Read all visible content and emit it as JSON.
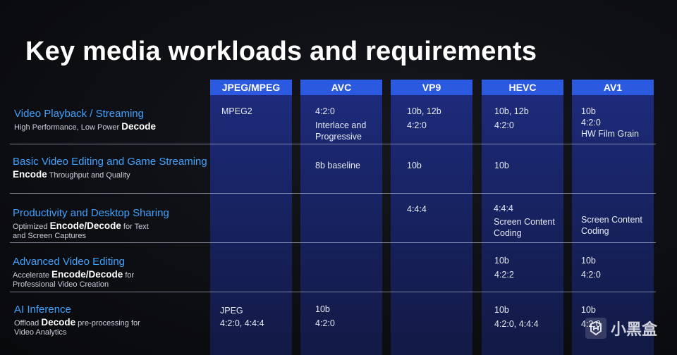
{
  "title": "Key media workloads and requirements",
  "columns": [
    "JPEG/MPEG",
    "AVC",
    "VP9",
    "HEVC",
    "AV1"
  ],
  "rows": [
    {
      "title": "Video Playback / Streaming",
      "desc_pre": "High Performance, Low Power ",
      "desc_bold": "Decode",
      "desc_post": "",
      "cells": [
        [
          "MPEG2"
        ],
        [
          "4:2:0",
          "Interlace and",
          "Progressive"
        ],
        [
          "10b, 12b",
          "4:2:0"
        ],
        [
          "10b, 12b",
          "4:2:0"
        ],
        [
          "10b",
          "4:2:0",
          "HW Film Grain"
        ]
      ]
    },
    {
      "title": "Basic Video Editing and Game Streaming",
      "desc_pre": "",
      "desc_bold": "Encode",
      "desc_post": " Throughput and Quality",
      "cells": [
        [],
        [
          "8b baseline"
        ],
        [
          "10b"
        ],
        [
          "10b"
        ],
        []
      ]
    },
    {
      "title": "Productivity and Desktop Sharing",
      "desc_pre": "Optimized ",
      "desc_bold": "Encode/Decode",
      "desc_post": " for Text and Screen Captures",
      "cells": [
        [],
        [],
        [
          "4:4:4"
        ],
        [
          "4:4:4",
          "Screen Content",
          "Coding"
        ],
        [
          "Screen Content",
          "Coding"
        ]
      ]
    },
    {
      "title": "Advanced Video Editing",
      "desc_pre": "Accelerate ",
      "desc_bold": "Encode/Decode",
      "desc_post": " for Professional Video Creation",
      "cells": [
        [],
        [],
        [],
        [
          "10b",
          "4:2:2"
        ],
        [
          "10b",
          "4:2:0"
        ]
      ]
    },
    {
      "title": "AI Inference",
      "desc_pre": "Offload ",
      "desc_bold": "Decode",
      "desc_post": " pre-processing for Video Analytics",
      "cells": [
        [
          "JPEG",
          "4:2:0, 4:4:4"
        ],
        [
          "10b",
          "4:2:0"
        ],
        [],
        [
          "10b",
          "4:2:0, 4:4:4"
        ],
        [
          "10b",
          "4:2:0"
        ]
      ]
    }
  ],
  "watermark": "小黑盒"
}
